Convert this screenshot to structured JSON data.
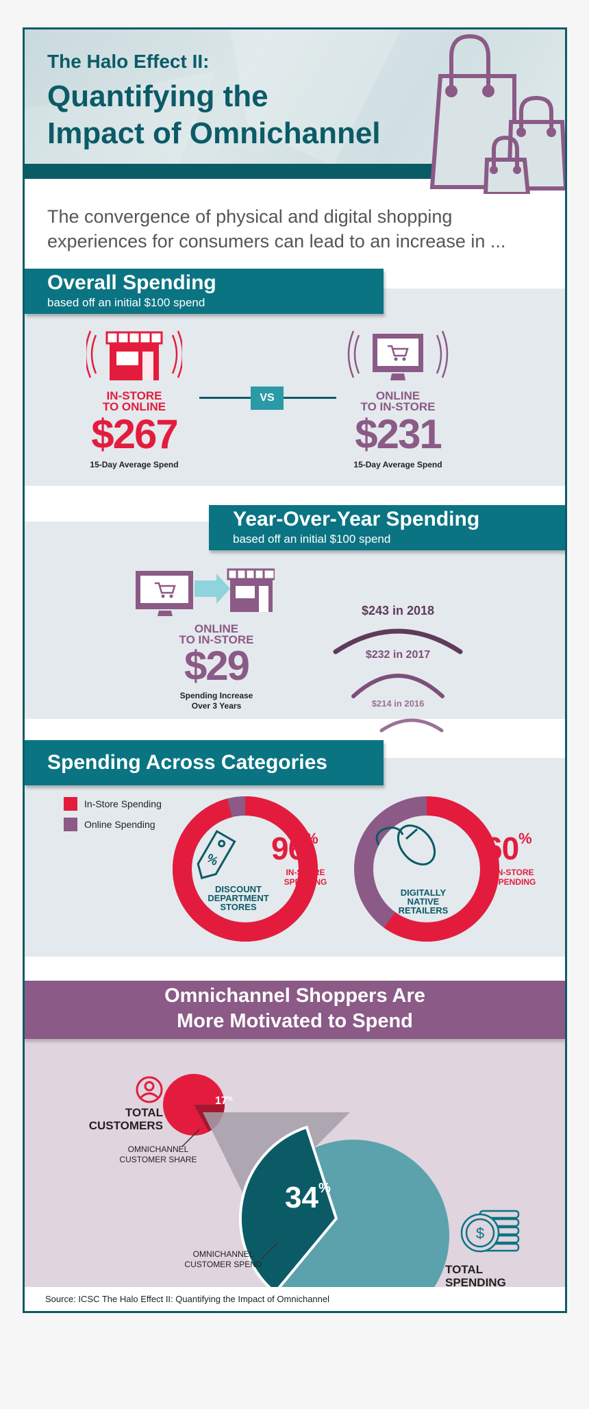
{
  "header": {
    "kicker": "The Halo Effect II:",
    "title_line1": "Quantifying the",
    "title_line2": "Impact of Omnichannel",
    "icon": "shopping-bags-icon"
  },
  "intro": "The convergence of physical and digital shopping experiences for consumers can lead to an increase in ...",
  "overall": {
    "title": "Overall Spending",
    "subtitle": "based off an initial $100 spend",
    "left": {
      "label1": "IN-STORE",
      "label2": "TO ONLINE",
      "value": "$267",
      "caption": "15-Day Average Spend",
      "icon": "storefront-icon"
    },
    "vs": "VS",
    "right": {
      "label1": "ONLINE",
      "label2": "TO IN-STORE",
      "value": "$231",
      "caption": "15-Day Average Spend",
      "icon": "computer-cart-icon"
    }
  },
  "yoy": {
    "title": "Year-Over-Year Spending",
    "subtitle": "based off an initial $100 spend",
    "label1": "ONLINE",
    "label2": "TO IN-STORE",
    "value": "$29",
    "caption1": "Spending Increase",
    "caption2": "Over 3 Years",
    "years": [
      "$243 in 2018",
      "$232 in 2017",
      "$214 in 2016"
    ]
  },
  "categories": {
    "title": "Spending Across Categories",
    "legend": [
      {
        "label": "In-Store Spending",
        "color": "#e31c3d"
      },
      {
        "label": "Online Spending",
        "color": "#8b5a86"
      }
    ],
    "charts": [
      {
        "pct": "96",
        "pct_sign": "%",
        "instore_fraction": 0.96,
        "label1": "IN-STORE",
        "label2": "SPENDING",
        "name1": "DISCOUNT",
        "name2": "DEPARTMENT",
        "name3": "STORES",
        "icon": "price-tag-icon"
      },
      {
        "pct": "60",
        "pct_sign": "%",
        "instore_fraction": 0.6,
        "label1": "IN-STORE",
        "label2": "SPENDING",
        "name1": "DIGITALLY",
        "name2": "NATIVE",
        "name3": "RETAILERS",
        "icon": "mouse-icon"
      }
    ]
  },
  "omni": {
    "title1": "Omnichannel Shoppers Are",
    "title2": "More Motivated to Spend",
    "customers1": "TOTAL",
    "customers2": "CUSTOMERS",
    "share_pct": "17",
    "share_sign": "%",
    "share_fraction": 0.17,
    "share_label1": "OMNICHANNEL",
    "share_label2": "CUSTOMER SHARE",
    "spend_pct": "34",
    "spend_sign": "%",
    "spend_fraction": 0.34,
    "spend_label1": "OMNICHANNEL",
    "spend_label2": "CUSTOMER SPEND",
    "spending1": "TOTAL",
    "spending2": "SPENDING",
    "person_icon": "person-icon",
    "coins_icon": "dollar-coins-icon"
  },
  "source": "Source: ICSC The Halo Effect II: Quantifying the Impact of Omnichannel"
}
